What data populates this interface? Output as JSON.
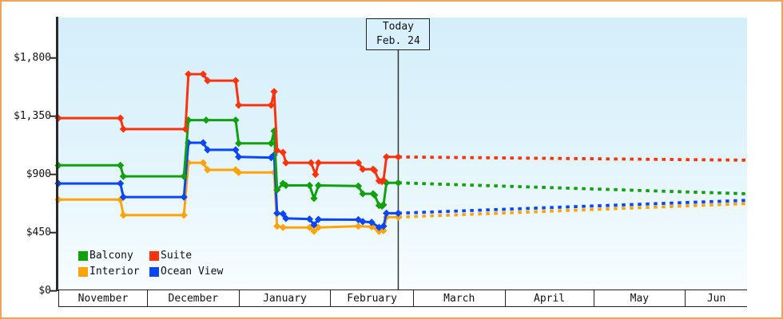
{
  "window": {
    "border_color": "#eca55c",
    "plot_bg_top": "#d4eefa",
    "plot_bg_bottom": "#f8fdff",
    "axis_color": "#2b2b2b"
  },
  "chart_data": {
    "type": "line",
    "title": "",
    "description": "Cruise cabin price history by category with dotted forecast after today marker",
    "y_ticks": [
      {
        "label": "$0",
        "value": 0
      },
      {
        "label": "$450",
        "value": 450
      },
      {
        "label": "$900",
        "value": 900
      },
      {
        "label": "$1,350",
        "value": 1350
      },
      {
        "label": "$1,800",
        "value": 1800
      }
    ],
    "ylim": [
      0,
      1980
    ],
    "x_axis": {
      "months": [
        {
          "label": "November",
          "days": 30
        },
        {
          "label": "December",
          "days": 31
        },
        {
          "label": "January",
          "days": 31
        },
        {
          "label": "February",
          "days": 28
        },
        {
          "label": "March",
          "days": 31
        },
        {
          "label": "April",
          "days": 30
        },
        {
          "label": "May",
          "days": 31
        },
        {
          "label": "Jun",
          "days": 21
        }
      ]
    },
    "today": {
      "line1": "Today",
      "line2": "Feb. 24",
      "day": 115
    },
    "series": [
      {
        "name": "Interior",
        "color": "#ffa408",
        "points": [
          [
            0,
            705
          ],
          [
            21,
            705
          ],
          [
            22,
            585
          ],
          [
            42.5,
            585
          ],
          [
            44,
            990
          ],
          [
            49,
            990
          ],
          [
            50.5,
            935
          ],
          [
            60,
            935
          ],
          [
            61,
            915
          ],
          [
            73,
            915
          ],
          [
            74,
            500
          ],
          [
            76,
            490
          ],
          [
            85,
            490
          ],
          [
            86.5,
            460
          ],
          [
            88,
            490
          ],
          [
            101.5,
            500
          ],
          [
            106,
            495
          ],
          [
            108.5,
            460
          ],
          [
            110,
            465
          ],
          [
            111,
            570
          ],
          [
            115,
            570
          ]
        ],
        "forecast_end": [
          233,
          675
        ]
      },
      {
        "name": "Ocean View",
        "color": "#0a46f5",
        "points": [
          [
            0,
            830
          ],
          [
            21,
            830
          ],
          [
            22,
            725
          ],
          [
            42.5,
            725
          ],
          [
            44,
            1145
          ],
          [
            49,
            1145
          ],
          [
            50.5,
            1090
          ],
          [
            60,
            1090
          ],
          [
            61,
            1035
          ],
          [
            72,
            1030
          ],
          [
            73,
            1050
          ],
          [
            74,
            600
          ],
          [
            76,
            595
          ],
          [
            77,
            560
          ],
          [
            85,
            555
          ],
          [
            86.5,
            510
          ],
          [
            88,
            552
          ],
          [
            101.5,
            550
          ],
          [
            103,
            535
          ],
          [
            106,
            530
          ],
          [
            108.5,
            490
          ],
          [
            110,
            500
          ],
          [
            111,
            600
          ],
          [
            115,
            600
          ]
        ],
        "forecast_end": [
          233,
          700
        ]
      },
      {
        "name": "Balcony",
        "color": "#10a010",
        "points": [
          [
            0,
            970
          ],
          [
            21,
            970
          ],
          [
            22,
            885
          ],
          [
            42.5,
            885
          ],
          [
            44,
            1320
          ],
          [
            50,
            1320
          ],
          [
            60,
            1320
          ],
          [
            61,
            1140
          ],
          [
            72,
            1140
          ],
          [
            73,
            1235
          ],
          [
            74,
            780
          ],
          [
            76,
            830
          ],
          [
            77,
            815
          ],
          [
            85,
            815
          ],
          [
            86.5,
            715
          ],
          [
            88,
            815
          ],
          [
            101.5,
            810
          ],
          [
            103,
            750
          ],
          [
            106.5,
            750
          ],
          [
            107,
            740
          ],
          [
            108.5,
            660
          ],
          [
            109.5,
            655
          ],
          [
            110,
            665
          ],
          [
            111,
            835
          ],
          [
            115,
            835
          ]
        ],
        "forecast_end": [
          233,
          750
        ]
      },
      {
        "name": "Suite",
        "color": "#fb330d",
        "points": [
          [
            0,
            1335
          ],
          [
            21,
            1335
          ],
          [
            22,
            1250
          ],
          [
            43,
            1250
          ],
          [
            44,
            1675
          ],
          [
            49,
            1675
          ],
          [
            50.5,
            1625
          ],
          [
            60,
            1625
          ],
          [
            61,
            1435
          ],
          [
            72,
            1435
          ],
          [
            73,
            1540
          ],
          [
            74,
            1085
          ],
          [
            76,
            1070
          ],
          [
            77,
            990
          ],
          [
            85.5,
            990
          ],
          [
            87,
            900
          ],
          [
            88,
            990
          ],
          [
            101.5,
            990
          ],
          [
            103,
            940
          ],
          [
            106.5,
            940
          ],
          [
            107,
            930
          ],
          [
            108.5,
            850
          ],
          [
            109.5,
            845
          ],
          [
            110,
            855
          ],
          [
            111,
            1035
          ],
          [
            115,
            1035
          ]
        ],
        "forecast_end": [
          233,
          1010
        ]
      }
    ],
    "legend": {
      "items": [
        {
          "label": "Balcony",
          "color": "#10a010"
        },
        {
          "label": "Suite",
          "color": "#fb330d"
        },
        {
          "label": "Interior",
          "color": "#ffa408"
        },
        {
          "label": "Ocean View",
          "color": "#0a46f5"
        }
      ]
    }
  }
}
